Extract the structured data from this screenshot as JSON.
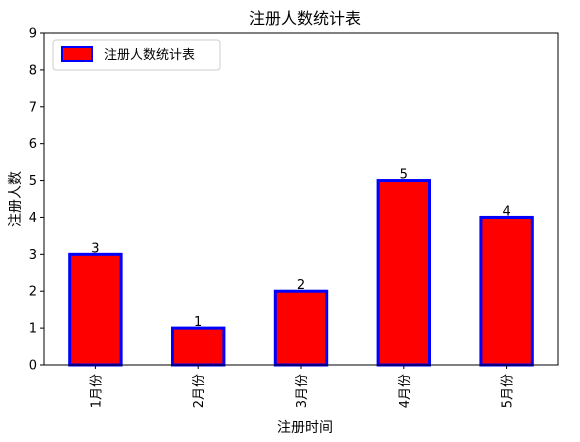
{
  "chart_data": {
    "type": "bar",
    "title": "注册人数统计表",
    "xlabel": "注册时间",
    "ylabel": "注册人数",
    "categories": [
      "1月份",
      "2月份",
      "3月份",
      "4月份",
      "5月份"
    ],
    "series": [
      {
        "name": "注册人数统计表",
        "values": [
          3,
          1,
          2,
          5,
          4
        ]
      }
    ],
    "ylim": [
      0,
      9
    ],
    "yticks": [
      "0",
      "1",
      "2",
      "3",
      "4",
      "5",
      "6",
      "7",
      "8",
      "9"
    ],
    "grid": false,
    "legend": "top-left",
    "bar_fill_color": "#ff0000",
    "bar_edge_color": "#0000ff",
    "data_labels": true
  }
}
